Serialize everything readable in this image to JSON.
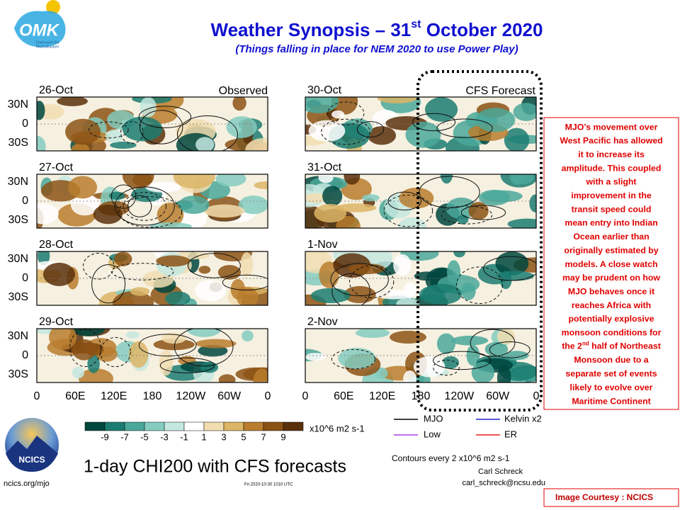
{
  "header": {
    "title_parts": [
      "Weather Synopsis – 31",
      "st",
      " October 2020"
    ],
    "subtitle": "(Things falling in place for NEM 2020 to use Power Play)"
  },
  "logo": {
    "text": "OMK",
    "tagline": [
      "Chennaiyil Oru",
      "Mazhaikaalam"
    ]
  },
  "panels": {
    "left_heading": "Observed",
    "right_heading": "CFS Forecast",
    "left_dates": [
      "26-Oct",
      "27-Oct",
      "28-Oct",
      "29-Oct"
    ],
    "right_dates": [
      "30-Oct",
      "31-Oct",
      "1-Nov",
      "2-Nov"
    ],
    "lat_labels": [
      "30N",
      "0",
      "30S"
    ],
    "lon_labels": [
      "0",
      "60E",
      "120E",
      "180",
      "120W",
      "60W",
      "0"
    ]
  },
  "colorbar": {
    "labels": [
      "-9",
      "-7",
      "-5",
      "-3",
      "-1",
      "1",
      "3",
      "5",
      "7",
      "9"
    ],
    "unit": "x10^6 m2 s-1"
  },
  "legend": {
    "items": [
      "MJO",
      "Kelvin x2",
      "Low",
      "ER"
    ]
  },
  "footer": {
    "plot_title": "1-day CHI200 with CFS forecasts",
    "contours": "Contours every 2 x10^6 m2 s-1",
    "author": "Carl Schreck",
    "email": "carl_schreck@ncsu.edu",
    "org": "NCICS",
    "url": "ncics.org/mjo",
    "timestamp": "Fri 2020-10-30 1010 UTC"
  },
  "note": {
    "lines": [
      "MJO’s movement over",
      "West Pacific has allowed",
      "it to increase its",
      "amplitude. This coupled",
      "with a slight",
      "improvement in the",
      "transit speed could",
      "mean entry into Indian",
      "Ocean earlier than",
      "originally estimated by",
      "models. A close watch",
      "may be prudent on how",
      "MJO behaves once it",
      "reaches Africa with",
      "potentially explosive",
      "monsoon conditions for",
      {
        "before": "the 2",
        "sup": "nd",
        "after": " half of Northeast"
      },
      "Monsoon due to a",
      "separate set of events",
      "likely to evolve over",
      "Maritime Continent"
    ]
  },
  "courtesy": "Image Courtesy : NCICS"
}
